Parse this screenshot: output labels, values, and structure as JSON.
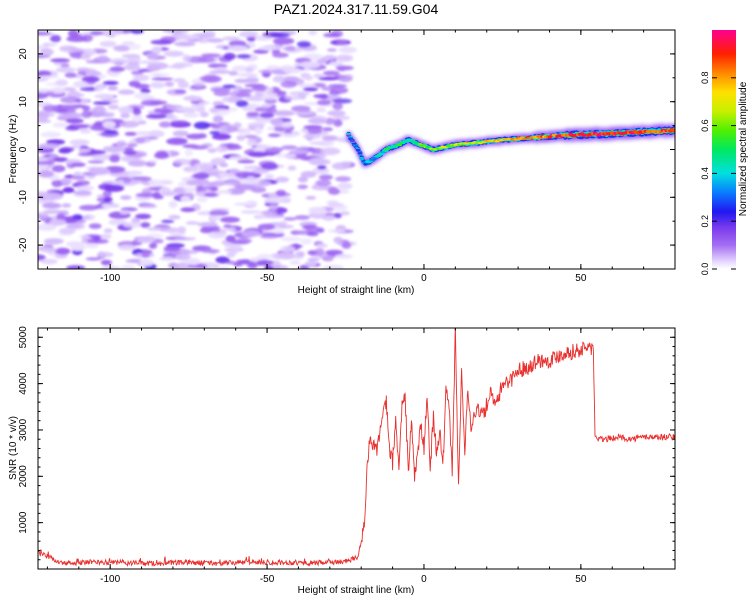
{
  "title": "PAZ1.2024.317.11.59.G04",
  "chart_data": [
    {
      "type": "heatmap",
      "xlabel": "Height of straight line (km)",
      "ylabel": "Frequency (Hz)",
      "xlim": [
        -123,
        80
      ],
      "ylim": [
        -25,
        25
      ],
      "xticks": [
        -100,
        -50,
        0,
        50
      ],
      "yticks": [
        -20,
        -10,
        0,
        10,
        20
      ],
      "grid": false,
      "colorbar": {
        "label": "Normalized spectral amplitude",
        "range": [
          0,
          1
        ],
        "ticks": [
          0.0,
          0.2,
          0.4,
          0.6,
          0.8
        ]
      },
      "noise_region_x": [
        -123,
        -24
      ],
      "noise_amplitude": 0.1,
      "signal_track": {
        "x": [
          -24,
          -21,
          -19,
          -16,
          -12,
          -8,
          -5,
          -1,
          3,
          10,
          18,
          25,
          35,
          45,
          55,
          65,
          80
        ],
        "freq": [
          3,
          0,
          -3,
          -2,
          0,
          1,
          2,
          1,
          0,
          1,
          1.5,
          2,
          2.5,
          3,
          3.2,
          3.5,
          4
        ],
        "amplitude": [
          0.2,
          0.25,
          0.3,
          0.38,
          0.45,
          0.5,
          0.48,
          0.55,
          0.6,
          0.65,
          0.7,
          0.75,
          0.82,
          0.85,
          0.88,
          0.88,
          0.9
        ]
      }
    },
    {
      "type": "line",
      "xlabel": "Height of straight line (km)",
      "ylabel": "SNR (10 * v/v)",
      "xlim": [
        -123,
        80
      ],
      "ylim": [
        0,
        5200
      ],
      "xticks": [
        -100,
        -50,
        0,
        50
      ],
      "yticks": [
        1000,
        2000,
        3000,
        4000,
        5000
      ],
      "grid": false,
      "series": [
        {
          "color": "#e8302e",
          "x": [
            -123,
            -115,
            -105,
            -95,
            -85,
            -75,
            -65,
            -55,
            -45,
            -35,
            -25,
            -21,
            -19,
            -18,
            -17,
            -15,
            -13,
            -12,
            -11,
            -10,
            -9,
            -8,
            -7,
            -6,
            -5,
            -4,
            -3,
            -2,
            -1,
            0,
            1,
            2,
            3,
            4,
            5,
            6,
            7,
            8,
            9,
            10,
            11,
            12,
            13,
            14,
            15,
            17,
            19,
            21,
            23,
            25,
            28,
            30,
            33,
            36,
            40,
            44,
            48,
            51,
            53,
            54,
            54.5,
            55,
            58,
            62,
            66,
            70,
            75,
            80
          ],
          "y": [
            350,
            120,
            150,
            130,
            120,
            140,
            120,
            150,
            140,
            130,
            160,
            250,
            1000,
            2400,
            2800,
            2600,
            3300,
            3600,
            2600,
            2300,
            3200,
            2200,
            3500,
            3700,
            2100,
            3200,
            2000,
            2500,
            3100,
            2600,
            3700,
            2200,
            3300,
            2500,
            3000,
            2100,
            3800,
            3600,
            2000,
            5200,
            1700,
            4300,
            2600,
            3800,
            3100,
            3500,
            3300,
            3800,
            3500,
            4000,
            4100,
            4300,
            4350,
            4500,
            4500,
            4650,
            4700,
            4750,
            4800,
            4700,
            2900,
            2800,
            2800,
            2850,
            2800,
            2850,
            2850,
            2850
          ]
        }
      ]
    }
  ]
}
